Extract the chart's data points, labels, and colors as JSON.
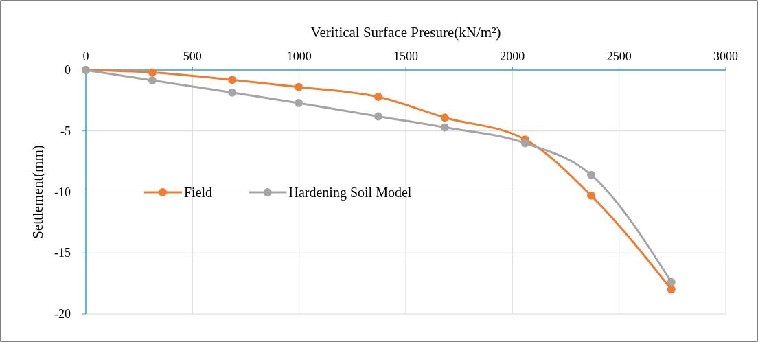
{
  "chart_data": {
    "type": "line",
    "xlabel": "Veritical Surface Presure(kN/m²)",
    "ylabel": "Settlement(mm)",
    "x": [
      0,
      312,
      686,
      998,
      1371,
      1683,
      2060,
      2369,
      2745
    ],
    "series": [
      {
        "name": "Field",
        "color": "#ed7d31",
        "values": [
          0,
          -0.2,
          -0.8,
          -1.4,
          -2.2,
          -3.9,
          -5.7,
          -10.3,
          -18.0
        ]
      },
      {
        "name": "Hardening Soil Model",
        "color": "#a5a5a5",
        "values": [
          0,
          -0.85,
          -1.85,
          -2.7,
          -3.8,
          -4.7,
          -6.0,
          -8.6,
          -17.4
        ]
      }
    ],
    "xlim": [
      0,
      3000
    ],
    "xticks": [
      0,
      500,
      1000,
      1500,
      2000,
      2500,
      3000
    ],
    "ylim": [
      -20,
      0
    ],
    "yticks": [
      -20,
      -15,
      -10,
      -5,
      0
    ],
    "grid": true,
    "legend": "left",
    "marker": "circle",
    "line_style": "solid"
  }
}
